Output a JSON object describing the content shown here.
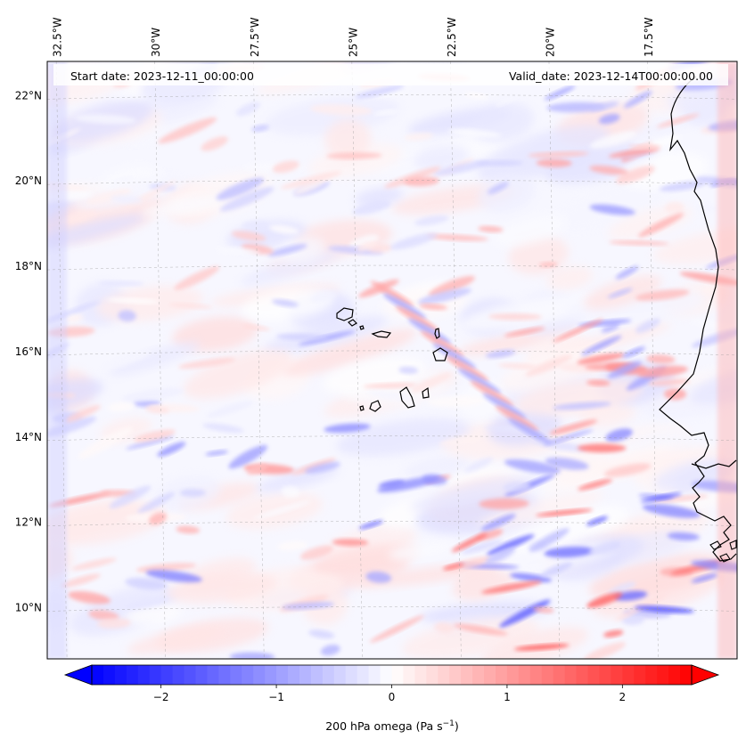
{
  "map": {
    "start_date_text": "Start date: 2023-12-11_00:00:00",
    "valid_date_text": "Valid_date: 2023-12-14T00:00:00.00",
    "extent": {
      "lon_min": -33.0,
      "lon_max": -15.5,
      "lat_min": 8.8,
      "lat_max": 22.8
    },
    "lon_ticks": [
      {
        "value": -32.5,
        "label": "32.5°W"
      },
      {
        "value": -30.0,
        "label": "30°W"
      },
      {
        "value": -27.5,
        "label": "27.5°W"
      },
      {
        "value": -25.0,
        "label": "25°W"
      },
      {
        "value": -22.5,
        "label": "22.5°W"
      },
      {
        "value": -20.0,
        "label": "20°W"
      },
      {
        "value": -17.5,
        "label": "17.5°W"
      }
    ],
    "lat_ticks": [
      {
        "value": 22,
        "label": "22°N"
      },
      {
        "value": 20,
        "label": "20°N"
      },
      {
        "value": 18,
        "label": "18°N"
      },
      {
        "value": 16,
        "label": "16°N"
      },
      {
        "value": 14,
        "label": "14°N"
      },
      {
        "value": 12,
        "label": "12°N"
      },
      {
        "value": 10,
        "label": "10°N"
      }
    ],
    "gridlines": true,
    "features": [
      "Cape Verde islands",
      "West African coastline"
    ]
  },
  "colorbar": {
    "label_text": "200 hPa omega (Pa s",
    "label_sup": "−1",
    "label_close": ")",
    "min": -2.6,
    "max": 2.6,
    "ticks": [
      {
        "value": -2,
        "label": "−2"
      },
      {
        "value": -1,
        "label": "−1"
      },
      {
        "value": 0,
        "label": "0"
      },
      {
        "value": 1,
        "label": "1"
      },
      {
        "value": 2,
        "label": "2"
      }
    ],
    "colormap": "bwr",
    "extend": "both",
    "colors": {
      "low": "#0000ff",
      "mid": "#ffffff",
      "high": "#ff0000"
    }
  }
}
